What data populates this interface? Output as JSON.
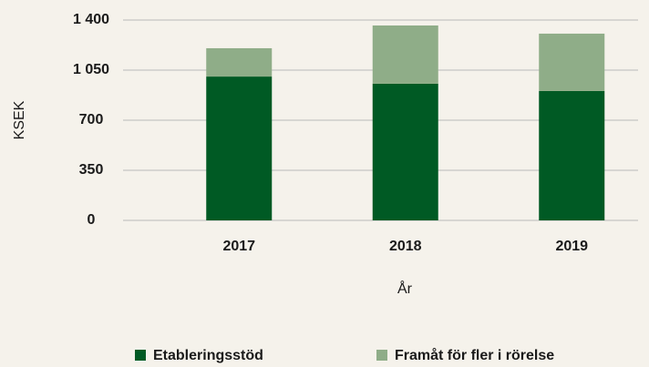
{
  "chart_data": {
    "type": "stacked_bar",
    "categories": [
      "2017",
      "2018",
      "2019"
    ],
    "series": [
      {
        "name": "Etableringsstöd",
        "color": "#005a24",
        "values": [
          1005,
          955,
          904
        ]
      },
      {
        "name": "Framåt för fler i rörelse",
        "color": "#8fad88",
        "values": [
          198,
          407,
          401
        ]
      }
    ],
    "ylabel": "KSEK",
    "xlabel": "År",
    "ylim": [
      0,
      1400
    ],
    "yticks": [
      0,
      350,
      700,
      {
        "value": 1050,
        "label": "1 050"
      },
      {
        "value": 1400,
        "label": "1 400"
      }
    ],
    "grid": true,
    "legend": "bottom"
  }
}
